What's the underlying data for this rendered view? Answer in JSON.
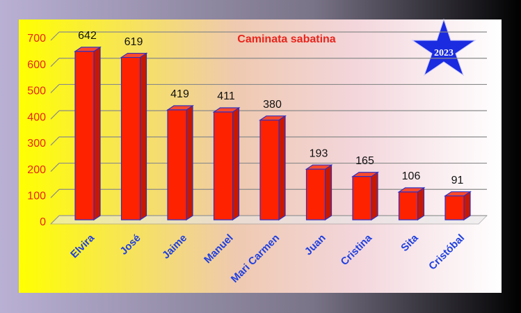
{
  "chart_data": {
    "type": "bar",
    "title": "Caminata sabatina",
    "annotation": "2023",
    "categories": [
      "Elvira",
      "José",
      "Jaime",
      "Manuel",
      "Mari Carmen",
      "Juan",
      "Cristina",
      "Sita",
      "Cristóbal"
    ],
    "values": [
      642,
      619,
      419,
      411,
      380,
      193,
      165,
      106,
      91
    ],
    "color": "#ff2200",
    "ylim": [
      0,
      700
    ],
    "yticks": [
      0,
      100,
      200,
      300,
      400,
      500,
      600,
      700
    ],
    "grid": true
  }
}
